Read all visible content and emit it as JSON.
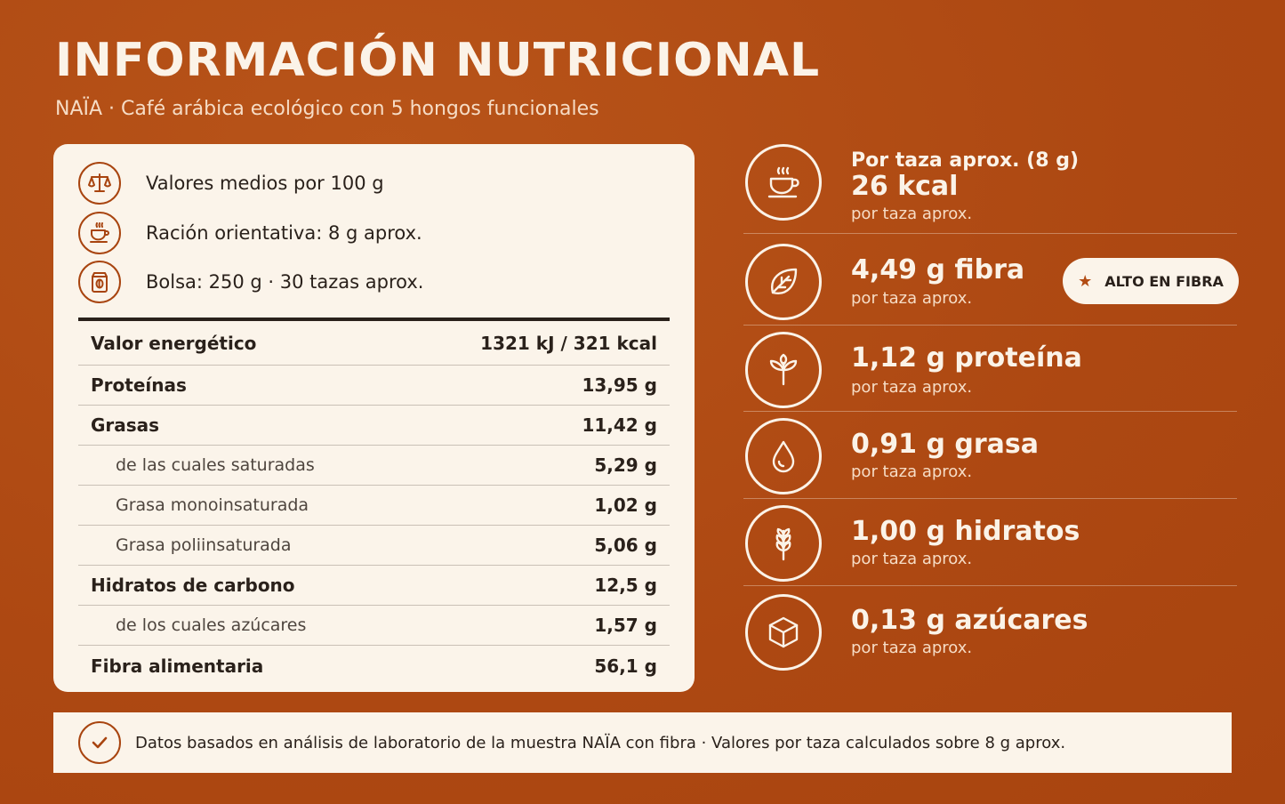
{
  "header": {
    "title": "INFORMACIÓN NUTRICIONAL",
    "subtitle": "NAÏA · Café arábica ecológico con 5 hongos funcionales"
  },
  "card": {
    "meta": [
      {
        "icon": "scale-icon",
        "text": "Valores medios por 100 g"
      },
      {
        "icon": "cup-icon",
        "text": "Ración orientativa: 8 g aprox."
      },
      {
        "icon": "bag-icon",
        "text": "Bolsa: 250 g · 30 tazas aprox."
      }
    ],
    "rows": [
      {
        "label": "Valor energético",
        "value": "1321 kJ / 321 kcal",
        "type": "main"
      },
      {
        "label": "Proteínas",
        "value": "13,95 g",
        "type": "main"
      },
      {
        "label": "Grasas",
        "value": "11,42 g",
        "type": "main"
      },
      {
        "label": "de las cuales saturadas",
        "value": "5,29 g",
        "type": "sub"
      },
      {
        "label": "Grasa monoinsaturada",
        "value": "1,02 g",
        "type": "sub"
      },
      {
        "label": "Grasa poliinsaturada",
        "value": "5,06 g",
        "type": "sub"
      },
      {
        "label": "Hidratos de carbono",
        "value": "12,5 g",
        "type": "main"
      },
      {
        "label": "de los cuales azúcares",
        "value": "1,57 g",
        "type": "sub"
      },
      {
        "label": "Fibra alimentaria",
        "value": "56,1 g",
        "type": "main"
      }
    ]
  },
  "stats": {
    "energy": {
      "head": "Por taza aprox. (8 g)",
      "big": "26 kcal",
      "small": "por taza aprox.",
      "icon": "coffee-cup-icon"
    },
    "fiber": {
      "big": "4,49 g fibra",
      "small": "por taza aprox.",
      "icon": "leaf-icon"
    },
    "protein": {
      "big": "1,12 g proteína",
      "small": "por taza aprox.",
      "icon": "sprout-icon"
    },
    "fat": {
      "big": "0,91 g grasa",
      "small": "por taza aprox.",
      "icon": "drop-icon"
    },
    "carbs": {
      "big": "1,00 g hidratos",
      "small": "por taza aprox.",
      "icon": "wheat-icon"
    },
    "sugar": {
      "big": "0,13 g azúcares",
      "small": "por taza aprox.",
      "icon": "cube-icon"
    }
  },
  "badge": {
    "label": "ALTO EN FIBRA",
    "icon": "star-icon"
  },
  "footer": {
    "text": "Datos basados en análisis de laboratorio de la muestra NAÏA con fibra · Valores por taza calculados sobre 8 g aprox."
  },
  "colors": {
    "background": "#b24c14",
    "card": "#fbf4ea",
    "accent": "#a8440f",
    "text": "#2a211b"
  }
}
